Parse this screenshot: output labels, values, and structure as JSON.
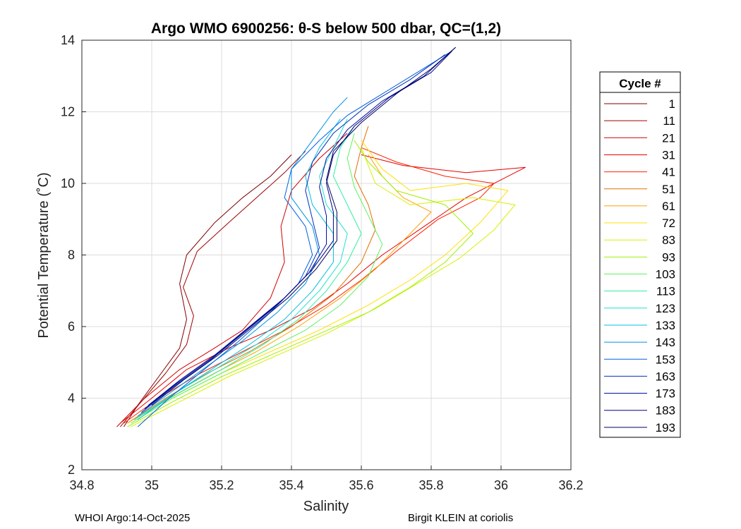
{
  "chart_data": {
    "type": "line",
    "title": "Argo WMO 6900256: θ-S below 500 dbar,  QC=(1,2)",
    "xlabel": "Salinity",
    "ylabel": "Potential Temperature (˚C)",
    "xlim": [
      34.8,
      36.2
    ],
    "ylim": [
      2,
      14
    ],
    "xticks": [
      "34.8",
      "35",
      "35.2",
      "35.4",
      "35.6",
      "35.8",
      "36",
      "36.2"
    ],
    "yticks": [
      "2",
      "4",
      "6",
      "8",
      "10",
      "12",
      "14"
    ],
    "grid": true,
    "legend": {
      "title": "Cycle #",
      "placement": "right, outside",
      "entries": [
        {
          "name": "1",
          "color": "#800000"
        },
        {
          "name": "11",
          "color": "#a00000"
        },
        {
          "name": "21",
          "color": "#d00000"
        },
        {
          "name": "31",
          "color": "#e60000"
        },
        {
          "name": "41",
          "color": "#ff2000"
        },
        {
          "name": "51",
          "color": "#e07000"
        },
        {
          "name": "61",
          "color": "#ffa000"
        },
        {
          "name": "72",
          "color": "#ffe000"
        },
        {
          "name": "83",
          "color": "#d8f000"
        },
        {
          "name": "93",
          "color": "#a0f000"
        },
        {
          "name": "103",
          "color": "#60f060"
        },
        {
          "name": "113",
          "color": "#30f0a0"
        },
        {
          "name": "123",
          "color": "#20e0d0"
        },
        {
          "name": "133",
          "color": "#00c0e0"
        },
        {
          "name": "143",
          "color": "#0090e0"
        },
        {
          "name": "153",
          "color": "#0060e0"
        },
        {
          "name": "163",
          "color": "#0030c0"
        },
        {
          "name": "173",
          "color": "#0010a0"
        },
        {
          "name": "183",
          "color": "#000080"
        },
        {
          "name": "193",
          "color": "#000060"
        }
      ]
    },
    "series": [
      {
        "cycle": 1,
        "points": [
          [
            34.92,
            3.2
          ],
          [
            34.96,
            3.8
          ],
          [
            35.02,
            4.6
          ],
          [
            35.08,
            5.4
          ],
          [
            35.1,
            6.2
          ],
          [
            35.08,
            7.2
          ],
          [
            35.1,
            8.0
          ],
          [
            35.18,
            8.9
          ],
          [
            35.26,
            9.6
          ],
          [
            35.34,
            10.2
          ],
          [
            35.4,
            10.8
          ]
        ]
      },
      {
        "cycle": 11,
        "points": [
          [
            34.91,
            3.2
          ],
          [
            34.97,
            3.9
          ],
          [
            35.04,
            4.7
          ],
          [
            35.1,
            5.5
          ],
          [
            35.12,
            6.3
          ],
          [
            35.09,
            7.1
          ],
          [
            35.13,
            8.1
          ],
          [
            35.22,
            8.9
          ],
          [
            35.3,
            9.6
          ],
          [
            35.38,
            10.3
          ],
          [
            35.44,
            10.9
          ]
        ]
      },
      {
        "cycle": 21,
        "points": [
          [
            34.9,
            3.2
          ],
          [
            34.98,
            4.0
          ],
          [
            35.08,
            4.8
          ],
          [
            35.18,
            5.4
          ],
          [
            35.26,
            5.9
          ],
          [
            35.34,
            6.8
          ],
          [
            35.38,
            7.8
          ],
          [
            35.37,
            8.8
          ],
          [
            35.4,
            9.8
          ],
          [
            35.48,
            10.7
          ],
          [
            35.56,
            11.4
          ]
        ]
      },
      {
        "cycle": 31,
        "points": [
          [
            34.91,
            3.3
          ],
          [
            35.0,
            4.0
          ],
          [
            35.1,
            4.8
          ],
          [
            35.22,
            5.4
          ],
          [
            35.34,
            5.9
          ],
          [
            35.46,
            6.5
          ],
          [
            35.56,
            7.2
          ],
          [
            35.66,
            8.0
          ],
          [
            35.78,
            8.8
          ],
          [
            35.9,
            9.6
          ],
          [
            36.0,
            10.1
          ],
          [
            36.07,
            10.45
          ],
          [
            35.9,
            10.3
          ],
          [
            35.72,
            10.5
          ],
          [
            35.6,
            10.8
          ]
        ]
      },
      {
        "cycle": 41,
        "points": [
          [
            34.92,
            3.3
          ],
          [
            35.02,
            4.0
          ],
          [
            35.14,
            4.7
          ],
          [
            35.26,
            5.3
          ],
          [
            35.38,
            5.9
          ],
          [
            35.5,
            6.6
          ],
          [
            35.6,
            7.3
          ],
          [
            35.7,
            8.1
          ],
          [
            35.82,
            9.0
          ],
          [
            35.94,
            9.6
          ],
          [
            35.98,
            10.0
          ],
          [
            35.84,
            10.2
          ],
          [
            35.7,
            10.6
          ],
          [
            35.6,
            11.0
          ]
        ]
      },
      {
        "cycle": 51,
        "points": [
          [
            34.93,
            3.3
          ],
          [
            35.04,
            4.0
          ],
          [
            35.16,
            4.7
          ],
          [
            35.28,
            5.3
          ],
          [
            35.4,
            6.0
          ],
          [
            35.52,
            6.9
          ],
          [
            35.6,
            7.8
          ],
          [
            35.64,
            8.7
          ],
          [
            35.62,
            9.4
          ],
          [
            35.58,
            10.2
          ],
          [
            35.6,
            11.0
          ],
          [
            35.62,
            11.6
          ]
        ]
      },
      {
        "cycle": 61,
        "points": [
          [
            34.93,
            3.3
          ],
          [
            35.05,
            4.0
          ],
          [
            35.18,
            4.7
          ],
          [
            35.3,
            5.3
          ],
          [
            35.42,
            6.0
          ],
          [
            35.54,
            6.8
          ],
          [
            35.64,
            7.6
          ],
          [
            35.72,
            8.4
          ],
          [
            35.8,
            9.2
          ],
          [
            35.72,
            9.6
          ],
          [
            35.66,
            10.2
          ],
          [
            35.62,
            10.8
          ]
        ]
      },
      {
        "cycle": 72,
        "points": [
          [
            34.94,
            3.3
          ],
          [
            35.06,
            4.0
          ],
          [
            35.2,
            4.7
          ],
          [
            35.34,
            5.3
          ],
          [
            35.48,
            5.9
          ],
          [
            35.62,
            6.6
          ],
          [
            35.74,
            7.3
          ],
          [
            35.84,
            8.0
          ],
          [
            35.94,
            8.9
          ],
          [
            36.02,
            9.8
          ],
          [
            35.9,
            10.0
          ],
          [
            35.74,
            9.8
          ],
          [
            35.66,
            10.4
          ],
          [
            35.6,
            11.2
          ]
        ]
      },
      {
        "cycle": 83,
        "points": [
          [
            34.94,
            3.2
          ],
          [
            35.08,
            3.9
          ],
          [
            35.22,
            4.6
          ],
          [
            35.36,
            5.2
          ],
          [
            35.5,
            5.8
          ],
          [
            35.64,
            6.5
          ],
          [
            35.76,
            7.2
          ],
          [
            35.88,
            7.9
          ],
          [
            35.98,
            8.7
          ],
          [
            36.04,
            9.4
          ],
          [
            35.92,
            9.6
          ],
          [
            35.74,
            9.4
          ],
          [
            35.64,
            10.0
          ],
          [
            35.6,
            11.0
          ]
        ]
      },
      {
        "cycle": 93,
        "points": [
          [
            34.93,
            3.2
          ],
          [
            35.06,
            3.9
          ],
          [
            35.2,
            4.6
          ],
          [
            35.34,
            5.2
          ],
          [
            35.48,
            5.8
          ],
          [
            35.62,
            6.4
          ],
          [
            35.74,
            7.1
          ],
          [
            35.84,
            7.8
          ],
          [
            35.92,
            8.6
          ],
          [
            35.84,
            9.4
          ],
          [
            35.7,
            9.8
          ],
          [
            35.62,
            10.6
          ],
          [
            35.58,
            11.2
          ]
        ]
      },
      {
        "cycle": 103,
        "points": [
          [
            34.94,
            3.3
          ],
          [
            35.06,
            4.0
          ],
          [
            35.2,
            4.7
          ],
          [
            35.32,
            5.3
          ],
          [
            35.44,
            5.9
          ],
          [
            35.54,
            6.6
          ],
          [
            35.62,
            7.4
          ],
          [
            35.66,
            8.3
          ],
          [
            35.62,
            9.1
          ],
          [
            35.58,
            9.9
          ],
          [
            35.56,
            10.7
          ],
          [
            35.58,
            11.4
          ]
        ]
      },
      {
        "cycle": 113,
        "points": [
          [
            34.95,
            3.4
          ],
          [
            35.07,
            4.1
          ],
          [
            35.2,
            4.8
          ],
          [
            35.32,
            5.5
          ],
          [
            35.42,
            6.2
          ],
          [
            35.5,
            7.0
          ],
          [
            35.56,
            7.8
          ],
          [
            35.6,
            8.6
          ],
          [
            35.56,
            9.4
          ],
          [
            35.52,
            10.2
          ],
          [
            35.54,
            11.0
          ],
          [
            35.58,
            11.6
          ]
        ]
      },
      {
        "cycle": 123,
        "points": [
          [
            34.95,
            3.4
          ],
          [
            35.06,
            4.1
          ],
          [
            35.18,
            4.8
          ],
          [
            35.3,
            5.5
          ],
          [
            35.4,
            6.2
          ],
          [
            35.48,
            7.0
          ],
          [
            35.54,
            7.8
          ],
          [
            35.56,
            8.6
          ],
          [
            35.5,
            9.4
          ],
          [
            35.48,
            10.2
          ],
          [
            35.52,
            11.0
          ],
          [
            35.56,
            11.8
          ]
        ]
      },
      {
        "cycle": 133,
        "points": [
          [
            34.96,
            3.4
          ],
          [
            35.06,
            4.1
          ],
          [
            35.17,
            4.8
          ],
          [
            35.28,
            5.5
          ],
          [
            35.38,
            6.2
          ],
          [
            35.46,
            7.0
          ],
          [
            35.52,
            7.8
          ],
          [
            35.52,
            8.6
          ],
          [
            35.46,
            9.4
          ],
          [
            35.44,
            10.2
          ],
          [
            35.48,
            11.0
          ],
          [
            35.54,
            11.8
          ]
        ]
      },
      {
        "cycle": 143,
        "points": [
          [
            34.96,
            3.5
          ],
          [
            35.06,
            4.2
          ],
          [
            35.16,
            4.9
          ],
          [
            35.26,
            5.6
          ],
          [
            35.36,
            6.4
          ],
          [
            35.44,
            7.2
          ],
          [
            35.48,
            8.0
          ],
          [
            35.46,
            8.8
          ],
          [
            35.4,
            9.6
          ],
          [
            35.4,
            10.4
          ],
          [
            35.46,
            11.2
          ],
          [
            35.52,
            12.0
          ],
          [
            35.56,
            12.4
          ]
        ]
      },
      {
        "cycle": 153,
        "points": [
          [
            34.96,
            3.2
          ],
          [
            35.05,
            4.0
          ],
          [
            35.15,
            4.8
          ],
          [
            35.25,
            5.6
          ],
          [
            35.34,
            6.4
          ],
          [
            35.42,
            7.2
          ],
          [
            35.46,
            8.0
          ],
          [
            35.44,
            8.8
          ],
          [
            35.38,
            9.6
          ],
          [
            35.4,
            10.4
          ],
          [
            35.48,
            11.2
          ],
          [
            35.56,
            11.9
          ],
          [
            35.66,
            12.5
          ],
          [
            35.76,
            13.1
          ],
          [
            35.86,
            13.7
          ]
        ]
      },
      {
        "cycle": 163,
        "points": [
          [
            34.97,
            3.6
          ],
          [
            35.06,
            4.3
          ],
          [
            35.16,
            5.0
          ],
          [
            35.26,
            5.8
          ],
          [
            35.36,
            6.6
          ],
          [
            35.44,
            7.4
          ],
          [
            35.48,
            8.2
          ],
          [
            35.46,
            9.0
          ],
          [
            35.44,
            9.8
          ],
          [
            35.46,
            10.6
          ],
          [
            35.52,
            11.4
          ],
          [
            35.62,
            12.2
          ],
          [
            35.74,
            12.9
          ],
          [
            35.84,
            13.6
          ]
        ]
      },
      {
        "cycle": 173,
        "points": [
          [
            34.98,
            3.7
          ],
          [
            35.07,
            4.4
          ],
          [
            35.17,
            5.1
          ],
          [
            35.27,
            5.9
          ],
          [
            35.37,
            6.7
          ],
          [
            35.45,
            7.5
          ],
          [
            35.5,
            8.3
          ],
          [
            35.5,
            9.1
          ],
          [
            35.48,
            9.9
          ],
          [
            35.5,
            10.7
          ],
          [
            35.56,
            11.5
          ],
          [
            35.66,
            12.3
          ],
          [
            35.78,
            13.0
          ],
          [
            35.87,
            13.8
          ]
        ]
      },
      {
        "cycle": 183,
        "points": [
          [
            34.99,
            3.8
          ],
          [
            35.08,
            4.5
          ],
          [
            35.18,
            5.2
          ],
          [
            35.28,
            6.0
          ],
          [
            35.38,
            6.8
          ],
          [
            35.46,
            7.6
          ],
          [
            35.52,
            8.4
          ],
          [
            35.52,
            9.2
          ],
          [
            35.5,
            10.0
          ],
          [
            35.52,
            10.8
          ],
          [
            35.58,
            11.6
          ],
          [
            35.68,
            12.4
          ],
          [
            35.8,
            13.1
          ],
          [
            35.86,
            13.7
          ]
        ]
      },
      {
        "cycle": 193,
        "points": [
          [
            35.0,
            3.8
          ],
          [
            35.09,
            4.5
          ],
          [
            35.19,
            5.2
          ],
          [
            35.29,
            6.0
          ],
          [
            35.39,
            6.8
          ],
          [
            35.47,
            7.6
          ],
          [
            35.53,
            8.4
          ],
          [
            35.53,
            9.2
          ],
          [
            35.5,
            10.1
          ],
          [
            35.52,
            10.9
          ],
          [
            35.6,
            11.7
          ],
          [
            35.7,
            12.5
          ],
          [
            35.8,
            13.2
          ],
          [
            35.87,
            13.8
          ]
        ]
      }
    ]
  },
  "footer": {
    "left": "WHOI Argo:14-Oct-2025",
    "right": "Birgit KLEIN at coriolis"
  }
}
